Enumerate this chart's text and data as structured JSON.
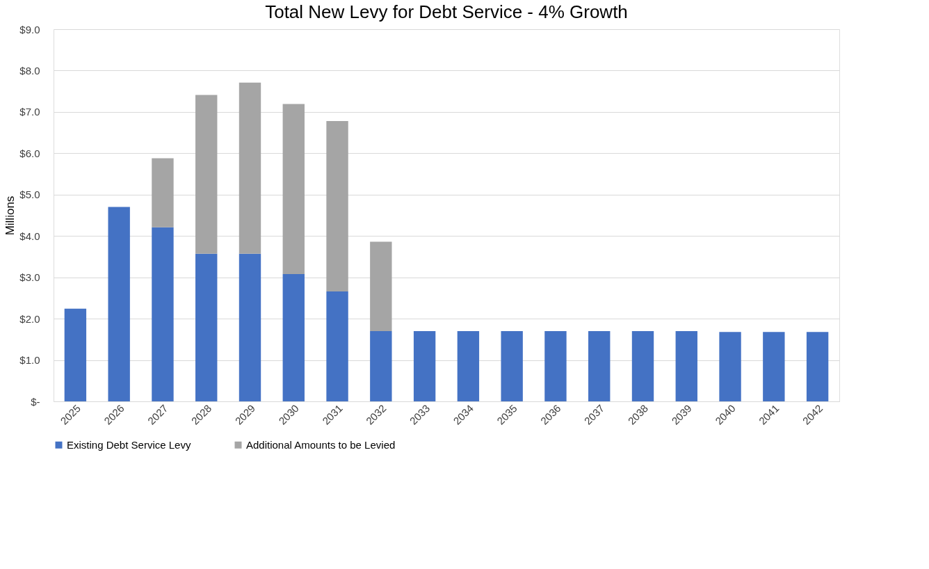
{
  "chart_data": {
    "type": "bar",
    "title": "Total New Levy for Debt Service - 4% Growth",
    "ylabel": "Millions",
    "categories": [
      "2025",
      "2026",
      "2027",
      "2028",
      "2029",
      "2030",
      "2031",
      "2032",
      "2033",
      "2034",
      "2035",
      "2036",
      "2037",
      "2038",
      "2039",
      "2040",
      "2041",
      "2042"
    ],
    "stacked": true,
    "series": [
      {
        "name": "Existing Debt Service Levy",
        "color": "#4472c4",
        "values": [
          2.24,
          4.7,
          4.21,
          3.57,
          3.57,
          3.08,
          2.66,
          1.7,
          1.7,
          1.7,
          1.7,
          1.7,
          1.7,
          1.7,
          1.7,
          1.68,
          1.68,
          1.68
        ]
      },
      {
        "name": "Additional Amounts to be Levied",
        "color": "#a5a5a5",
        "values": [
          null,
          null,
          1.67,
          3.84,
          4.14,
          4.11,
          4.12,
          2.16,
          null,
          null,
          null,
          null,
          null,
          null,
          null,
          null,
          null,
          null
        ]
      }
    ],
    "ylim": [
      0,
      9
    ],
    "yticks": [
      {
        "value": 0,
        "label": "$-"
      },
      {
        "value": 1,
        "label": "$1.0"
      },
      {
        "value": 2,
        "label": "$2.0"
      },
      {
        "value": 3,
        "label": "$3.0"
      },
      {
        "value": 4,
        "label": "$4.0"
      },
      {
        "value": 5,
        "label": "$5.0"
      },
      {
        "value": 6,
        "label": "$6.0"
      },
      {
        "value": 7,
        "label": "$7.0"
      },
      {
        "value": 8,
        "label": "$8.0"
      },
      {
        "value": 9,
        "label": "$9.0"
      }
    ],
    "grid": "y",
    "legend": "bottom"
  }
}
